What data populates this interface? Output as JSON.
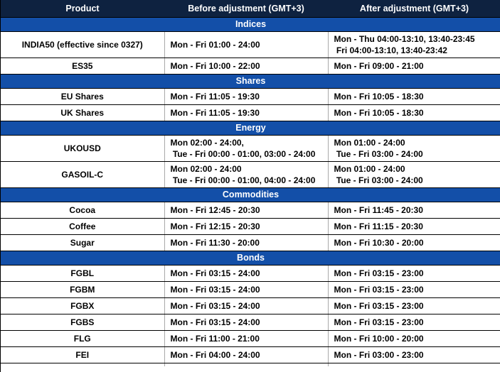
{
  "colors": {
    "header_bg": "#0e2240",
    "section_bg": "#134fa8",
    "header_text": "#ffffff",
    "body_text": "#000000"
  },
  "table": {
    "columns": [
      "Product",
      "Before adjustment (GMT+3)",
      "After adjustment (GMT+3)"
    ],
    "sections": [
      {
        "title": "Indices",
        "rows": [
          {
            "product": "INDIA50 (effective since 0327)",
            "before": "Mon - Fri 01:00 - 24:00",
            "after": "Mon - Thu 04:00-13:10, 13:40-23:45\n Fri 04:00-13:10, 13:40-23:42"
          },
          {
            "product": "ES35",
            "before": "Mon - Fri 10:00 - 22:00",
            "after": "Mon - Fri 09:00 - 21:00"
          }
        ]
      },
      {
        "title": "Shares",
        "rows": [
          {
            "product": "EU Shares",
            "before": "Mon - Fri 11:05 - 19:30",
            "after": "Mon - Fri 10:05 - 18:30"
          },
          {
            "product": "UK Shares",
            "before": "Mon - Fri 11:05 - 19:30",
            "after": "Mon - Fri 10:05 - 18:30"
          }
        ]
      },
      {
        "title": "Energy",
        "rows": [
          {
            "product": "UKOUSD",
            "before": "Mon 02:00 - 24:00,\n Tue - Fri 00:00 - 01:00, 03:00 - 24:00",
            "after": "Mon 01:00 - 24:00\n Tue - Fri 03:00 - 24:00"
          },
          {
            "product": "GASOIL-C",
            "before": "Mon 02:00 - 24:00\n Tue - Fri 00:00 - 01:00, 04:00 - 24:00",
            "after": "Mon 01:00 - 24:00\n Tue - Fri 03:00 - 24:00"
          }
        ]
      },
      {
        "title": "Commodities",
        "rows": [
          {
            "product": "Cocoa",
            "before": "Mon - Fri 12:45 - 20:30",
            "after": "Mon - Fri 11:45 - 20:30"
          },
          {
            "product": "Coffee",
            "before": "Mon - Fri 12:15 - 20:30",
            "after": "Mon - Fri 11:15 - 20:30"
          },
          {
            "product": "Sugar",
            "before": "Mon - Fri 11:30 - 20:00",
            "after": "Mon - Fri 10:30 - 20:00"
          }
        ]
      },
      {
        "title": "Bonds",
        "rows": [
          {
            "product": "FGBL",
            "before": "Mon - Fri 03:15 - 24:00",
            "after": "Mon - Fri 03:15 - 23:00"
          },
          {
            "product": "FGBM",
            "before": "Mon - Fri 03:15 - 24:00",
            "after": "Mon - Fri 03:15 - 23:00"
          },
          {
            "product": "FGBX",
            "before": "Mon - Fri 03:15 - 24:00",
            "after": "Mon - Fri 03:15 - 23:00"
          },
          {
            "product": "FGBS",
            "before": "Mon - Fri 03:15 - 24:00",
            "after": "Mon - Fri 03:15 - 23:00"
          },
          {
            "product": "FLG",
            "before": "Mon - Fri 11:00 - 21:00",
            "after": "Mon - Fri 10:00 - 20:00"
          },
          {
            "product": "FEI",
            "before": "Mon - Fri 04:00 - 24:00",
            "after": "Mon - Fri 03:00 - 23:00"
          }
        ]
      }
    ]
  }
}
